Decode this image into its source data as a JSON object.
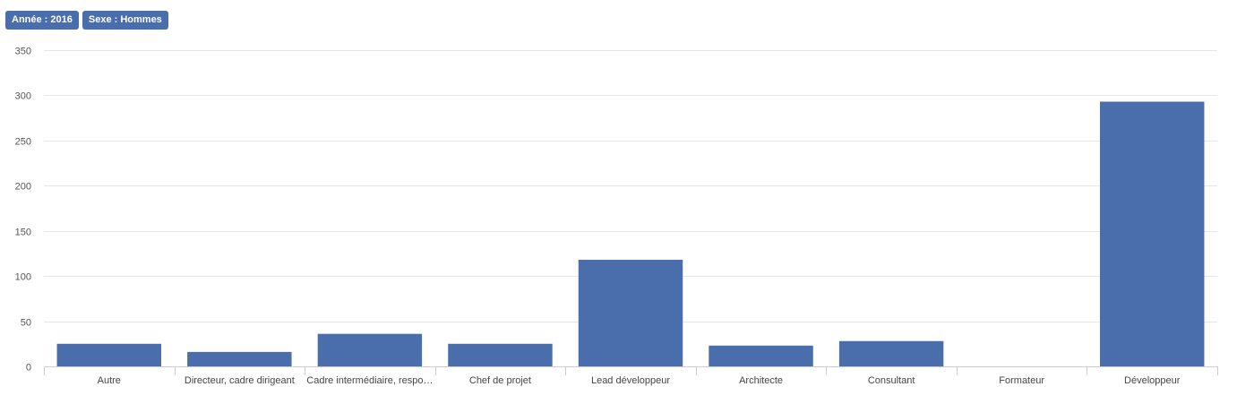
{
  "filters": [
    {
      "label": "Année : 2016"
    },
    {
      "label": "Sexe : Hommes"
    }
  ],
  "chart_data": {
    "type": "bar",
    "categories": [
      "Autre",
      "Directeur, cadre dirigeant",
      "Cadre intermédiaire, respo…",
      "Chef de projet",
      "Lead développeur",
      "Architecte",
      "Consultant",
      "Formateur",
      "Développeur"
    ],
    "values": [
      25,
      16,
      36,
      25,
      118,
      23,
      28,
      0,
      293
    ],
    "ylim": [
      0,
      350
    ],
    "yticks": [
      0,
      50,
      100,
      150,
      200,
      250,
      300,
      350
    ],
    "grid": true,
    "title": "",
    "xlabel": "",
    "ylabel": "",
    "bar_color": "#4a6dab",
    "badge_color": "#4a6dab"
  }
}
